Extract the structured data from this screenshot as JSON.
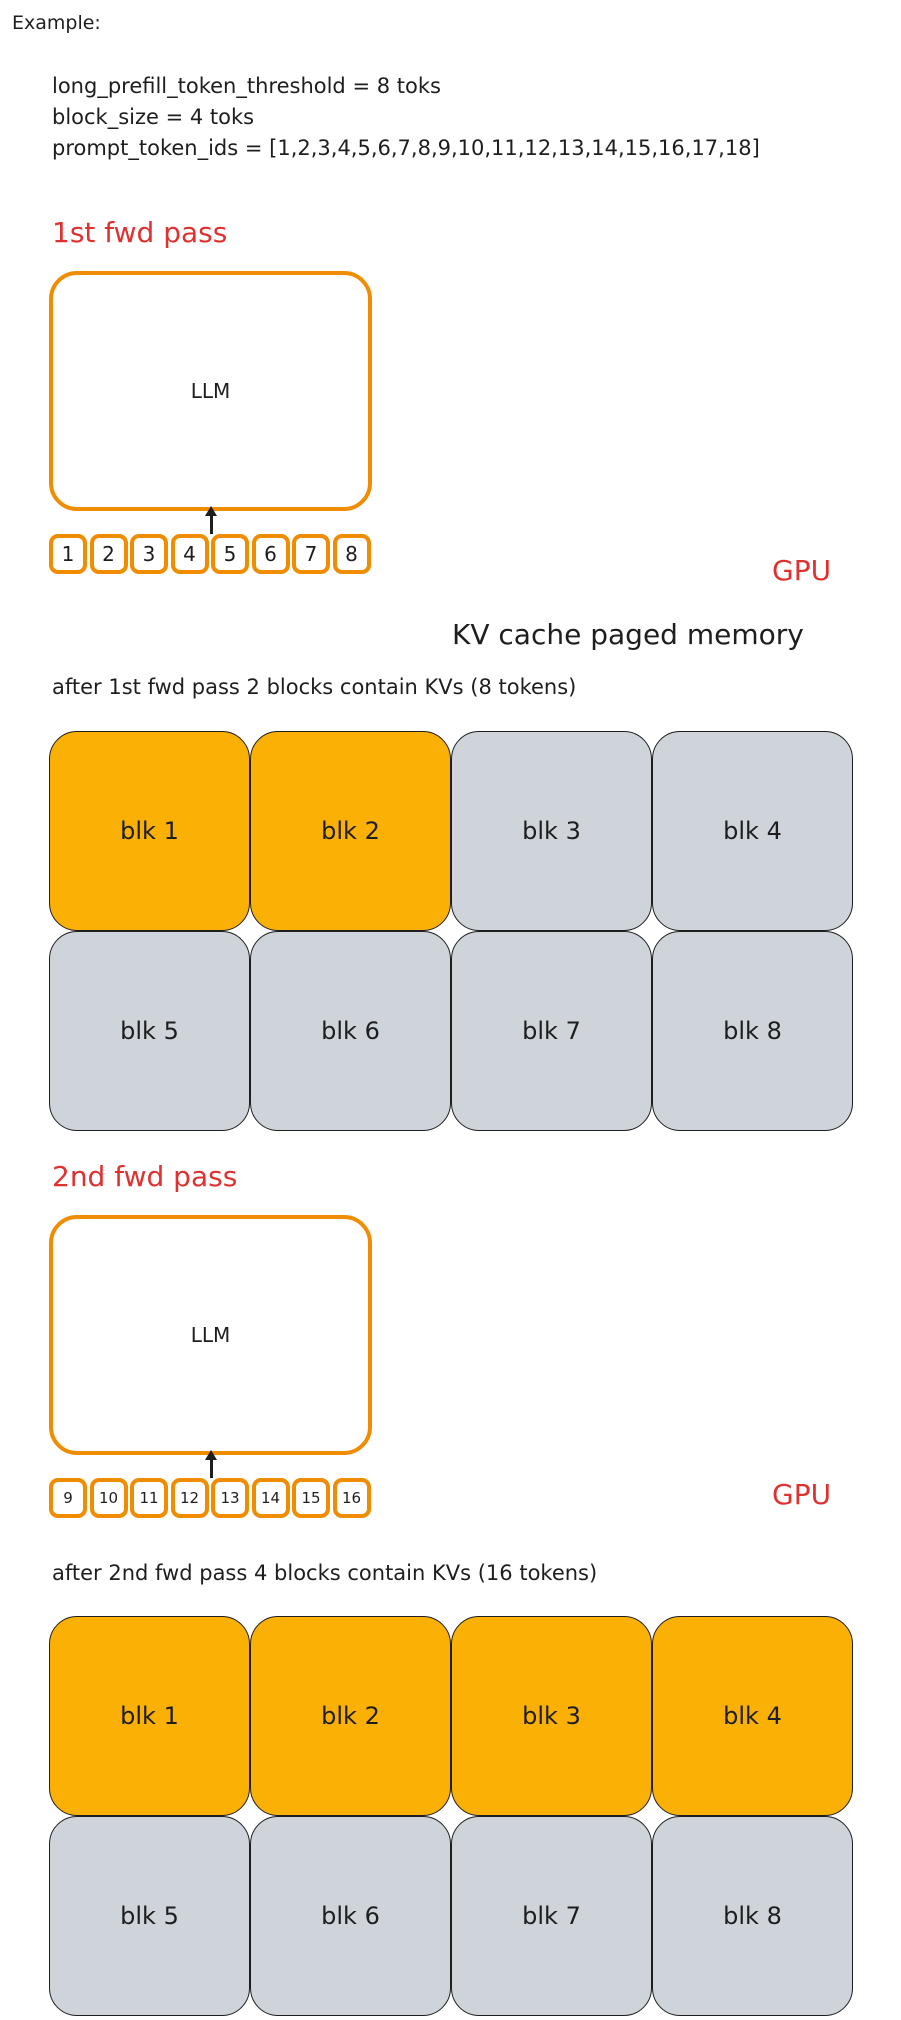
{
  "intro": {
    "heading": "Example:",
    "params": [
      "long_prefill_token_threshold = 8 toks",
      "block_size = 4 toks",
      "prompt_token_ids = [1,2,3,4,5,6,7,8,9,10,11,12,13,14,15,16,17,18]"
    ]
  },
  "colors": {
    "accent_red": "#e03131",
    "llm_stroke": "#f08c00",
    "filled_block": "#fab005",
    "empty_block": "#ced4da"
  },
  "memory_title": "KV cache paged memory",
  "passes": [
    {
      "title": "1st fwd pass",
      "model_label": "LLM",
      "tokens": [
        "1",
        "2",
        "3",
        "4",
        "5",
        "6",
        "7",
        "8"
      ],
      "device_label": "GPU",
      "caption": "after 1st fwd pass 2 blocks contain KVs (8 tokens)",
      "blocks": [
        {
          "label": "blk 1",
          "filled": true
        },
        {
          "label": "blk 2",
          "filled": true
        },
        {
          "label": "blk 3",
          "filled": false
        },
        {
          "label": "blk 4",
          "filled": false
        },
        {
          "label": "blk 5",
          "filled": false
        },
        {
          "label": "blk 6",
          "filled": false
        },
        {
          "label": "blk 7",
          "filled": false
        },
        {
          "label": "blk 8",
          "filled": false
        }
      ]
    },
    {
      "title": "2nd fwd pass",
      "model_label": "LLM",
      "tokens": [
        "9",
        "10",
        "11",
        "12",
        "13",
        "14",
        "15",
        "16"
      ],
      "device_label": "GPU",
      "caption": "after 2nd fwd pass 4 blocks contain KVs (16 tokens)",
      "blocks": [
        {
          "label": "blk 1",
          "filled": true
        },
        {
          "label": "blk 2",
          "filled": true
        },
        {
          "label": "blk 3",
          "filled": true
        },
        {
          "label": "blk 4",
          "filled": true
        },
        {
          "label": "blk 5",
          "filled": false
        },
        {
          "label": "blk 6",
          "filled": false
        },
        {
          "label": "blk 7",
          "filled": false
        },
        {
          "label": "blk 8",
          "filled": false
        }
      ]
    }
  ]
}
